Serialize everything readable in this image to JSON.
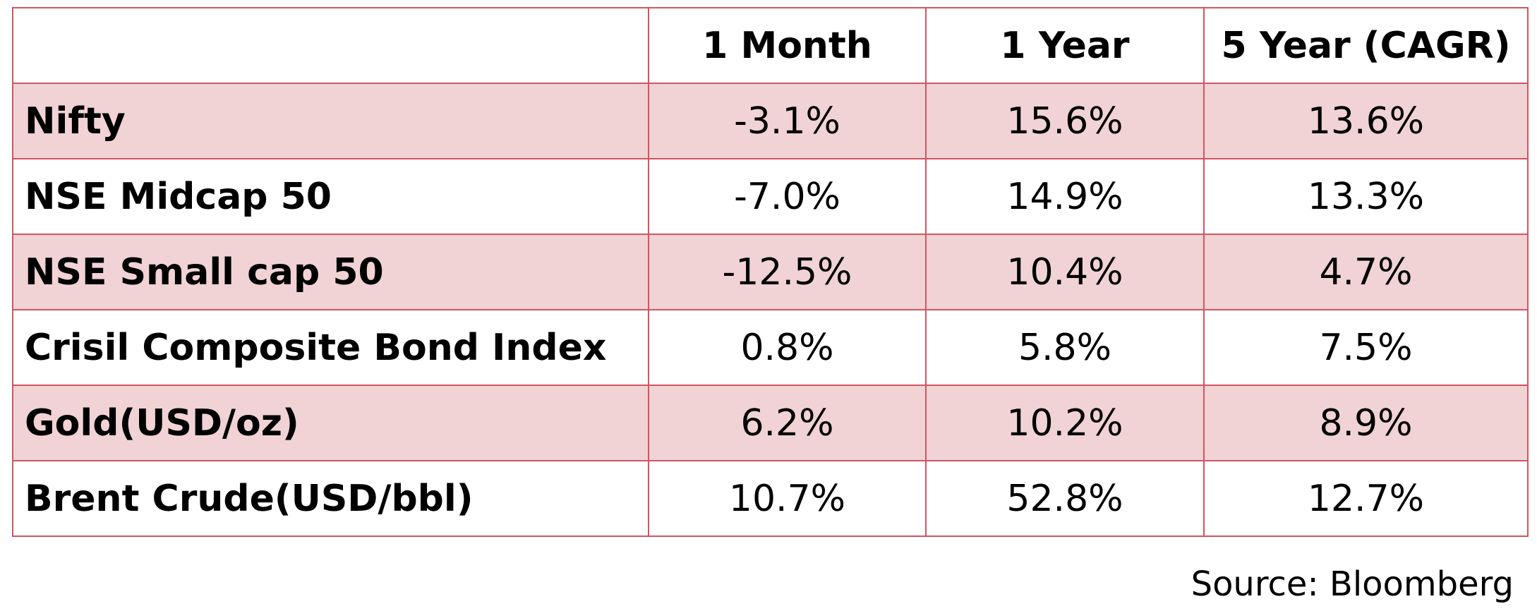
{
  "table": {
    "headers": [
      "",
      "1 Month",
      "1 Year",
      "5 Year (CAGR)"
    ],
    "rows": [
      {
        "label": "Nifty",
        "values": [
          "-3.1%",
          "15.6%",
          "13.6%"
        ]
      },
      {
        "label": "NSE Midcap 50",
        "values": [
          "-7.0%",
          "14.9%",
          "13.3%"
        ]
      },
      {
        "label": "NSE Small cap 50",
        "values": [
          "-12.5%",
          "10.4%",
          "4.7%"
        ]
      },
      {
        "label": "Crisil Composite Bond Index",
        "values": [
          "0.8%",
          "5.8%",
          "7.5%"
        ]
      },
      {
        "label": "Gold(USD/oz)",
        "values": [
          "6.2%",
          "10.2%",
          "8.9%"
        ]
      },
      {
        "label": "Brent Crude(USD/bbl)",
        "values": [
          "10.7%",
          "52.8%",
          "12.7%"
        ]
      }
    ]
  },
  "source": "Source: Bloomberg",
  "colors": {
    "border": "#d0555e",
    "shaded_row": "#f1d3d5",
    "text": "#000000"
  }
}
